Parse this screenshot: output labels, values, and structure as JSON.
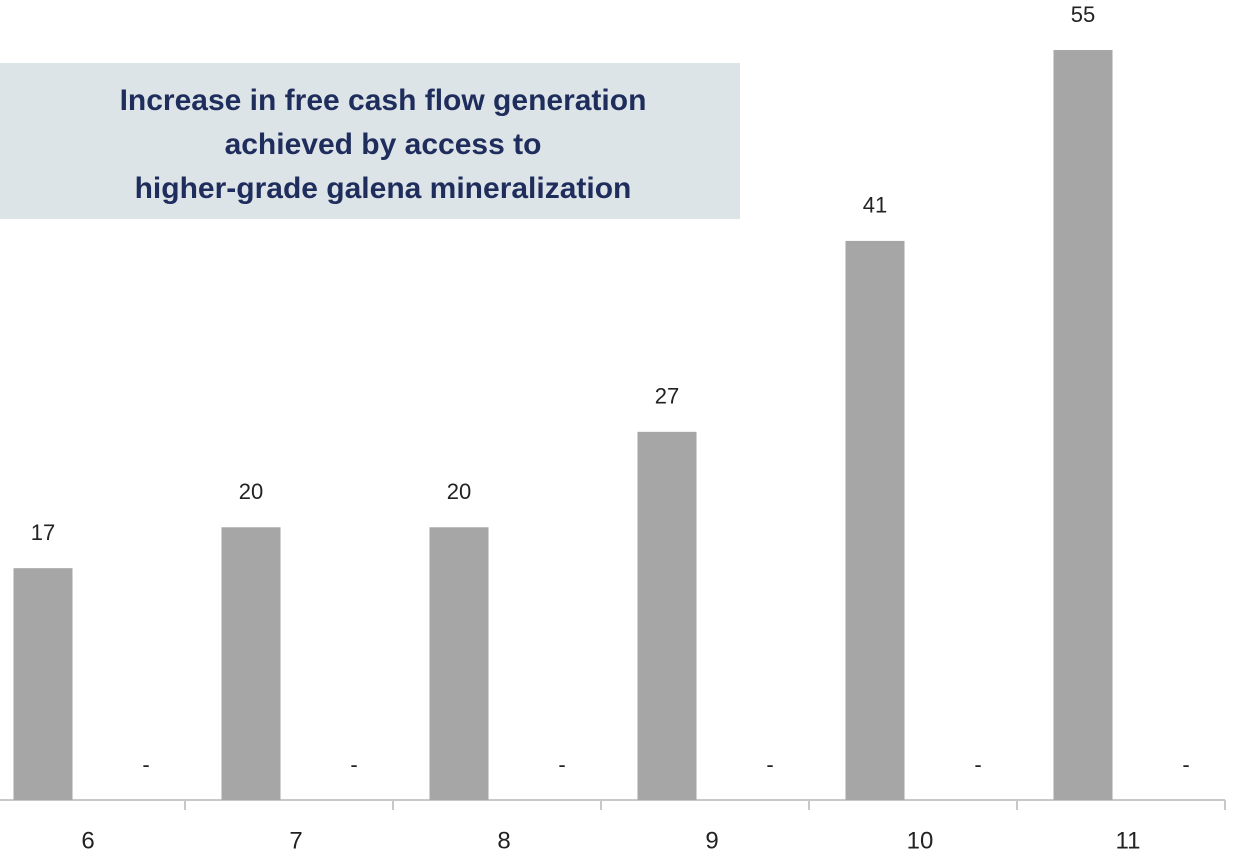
{
  "chart_data": {
    "type": "bar",
    "title": [
      "Increase in free cash flow generation",
      "achieved by access to",
      "higher-grade galena mineralization"
    ],
    "categories": [
      "6",
      "7",
      "8",
      "9",
      "10",
      "11"
    ],
    "series": [
      {
        "color": "#a6a6a6",
        "values": [
          17,
          20,
          20,
          27,
          41,
          55
        ]
      },
      {
        "color": "#5b7fa8",
        "values": [
          0,
          0,
          0,
          0,
          0,
          0
        ],
        "value_labels": [
          "-",
          "-",
          "-",
          "-",
          "-",
          "-"
        ]
      }
    ]
  }
}
